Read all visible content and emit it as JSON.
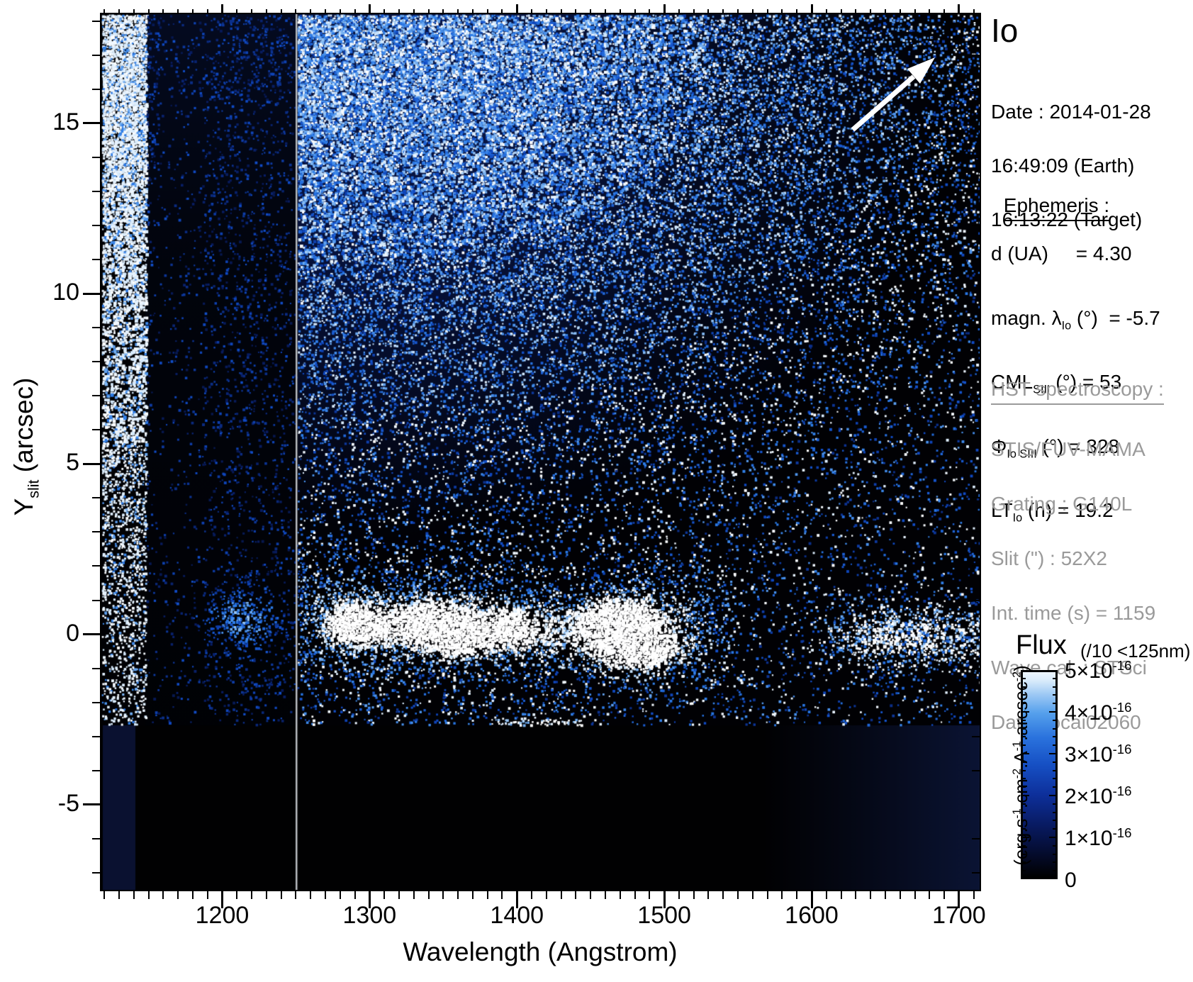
{
  "title": "Io",
  "datetime": {
    "date_line": "Date : 2014-01-28",
    "earth_line": "16:49:09 (Earth)",
    "target_line": "16:13:22 (Target)"
  },
  "ephemeris": {
    "heading": "Ephemeris :",
    "rows": [
      {
        "a": "d (UA)",
        "sub": "",
        "b": "     = 4.30"
      },
      {
        "a": "magn. λ",
        "sub": "Io",
        "b": " (°)  = -5.7"
      },
      {
        "a": "CML",
        "sub": "SIII",
        "b": " (°) = 53"
      },
      {
        "a": "Φ",
        "sub": "Io SIII",
        "b": " (°) = 328"
      },
      {
        "a": "LT",
        "sub": "Io",
        "b": " (h) = 19.2"
      }
    ]
  },
  "hst": {
    "heading": "HST spectroscopy :",
    "rows": [
      "STIS/FUV-MAMA",
      "Grating : G140L",
      "Slit (\") : 52X2",
      "Int. time (s) = 1159",
      "Wave cal. : STSci",
      "Data : ocai02060"
    ]
  },
  "colorbar": {
    "title": "Flux",
    "qualifier": "(/10 <125nm)",
    "labels": [
      {
        "m": "5×10",
        "e": "-16"
      },
      {
        "m": "4×10",
        "e": "-16"
      },
      {
        "m": "3×10",
        "e": "-16"
      },
      {
        "m": "2×10",
        "e": "-16"
      },
      {
        "m": "1×10",
        "e": "-16"
      },
      {
        "m": "0",
        "e": ""
      }
    ],
    "unit_parts": [
      {
        "t": "(erg.s",
        "e": "-1"
      },
      {
        "t": ".cm",
        "e": "-2"
      },
      {
        "t": ".A",
        "e": "-1"
      },
      {
        "t": ".arcsec",
        "e": "-2"
      },
      {
        "t": ")",
        "e": ""
      }
    ]
  },
  "axes": {
    "x_label": "Wavelength (Angstrom)",
    "y_label_main": "Y",
    "y_label_sub": "slit",
    "y_label_rest": " (arcsec)"
  },
  "chart_data": {
    "type": "heatmap",
    "title": "Io",
    "xlabel": "Wavelength (Angstrom)",
    "ylabel": "Y_slit (arcsec)",
    "xlim": [
      1118,
      1714
    ],
    "ylim": [
      -7.5,
      18.2
    ],
    "x_ticks": [
      1200,
      1300,
      1400,
      1500,
      1600,
      1700
    ],
    "y_ticks": [
      15,
      10,
      5,
      0,
      -5
    ],
    "x_minor_step": 10,
    "y_minor_step": 1,
    "grid": false,
    "colorbar": {
      "label": "Flux",
      "qualifier": "/10 <125nm",
      "units": "erg.s-1.cm-2.A-1.arcsec-2",
      "range": [
        0,
        5e-16
      ],
      "tick_values": [
        0,
        1e-16,
        2e-16,
        3e-16,
        4e-16,
        5e-16
      ],
      "palette": "black-blue-white"
    },
    "features": [
      {
        "name": "bright saturated band at detector left edge",
        "x_range": [
          1120,
          1148
        ],
        "y_range": [
          -2.5,
          18.2
        ]
      },
      {
        "name": "dark low-sensitivity band",
        "x_range": [
          1148,
          1250
        ],
        "y_range": [
          -7.5,
          18.2
        ]
      },
      {
        "name": "vertical segment-boundary line",
        "wavelength": 1250
      },
      {
        "name": "scattered-light haze, dense blue noise at top",
        "x_range": [
          1250,
          1560
        ],
        "y_range": [
          4,
          18.2
        ]
      },
      {
        "name": "faint emission blob",
        "wavelength": 1200,
        "y": 0
      },
      {
        "name": "emission blob",
        "wavelength": 1297,
        "y": 0
      },
      {
        "name": "emission blob (double lobe)",
        "wavelength": 1345,
        "y": 0
      },
      {
        "name": "emission blob (faint)",
        "wavelength": 1398,
        "y": 0
      },
      {
        "name": "emission blob (brightest, double lobe)",
        "wavelength": 1472,
        "y": 0
      },
      {
        "name": "emission streak",
        "wavelength": 1657,
        "y": 0
      },
      {
        "name": "no-data dark region",
        "y_range": [
          -7.5,
          -2.9
        ]
      }
    ],
    "annotations": [
      {
        "type": "arrow",
        "direction": "northeast",
        "color": "#ffffff"
      }
    ]
  }
}
